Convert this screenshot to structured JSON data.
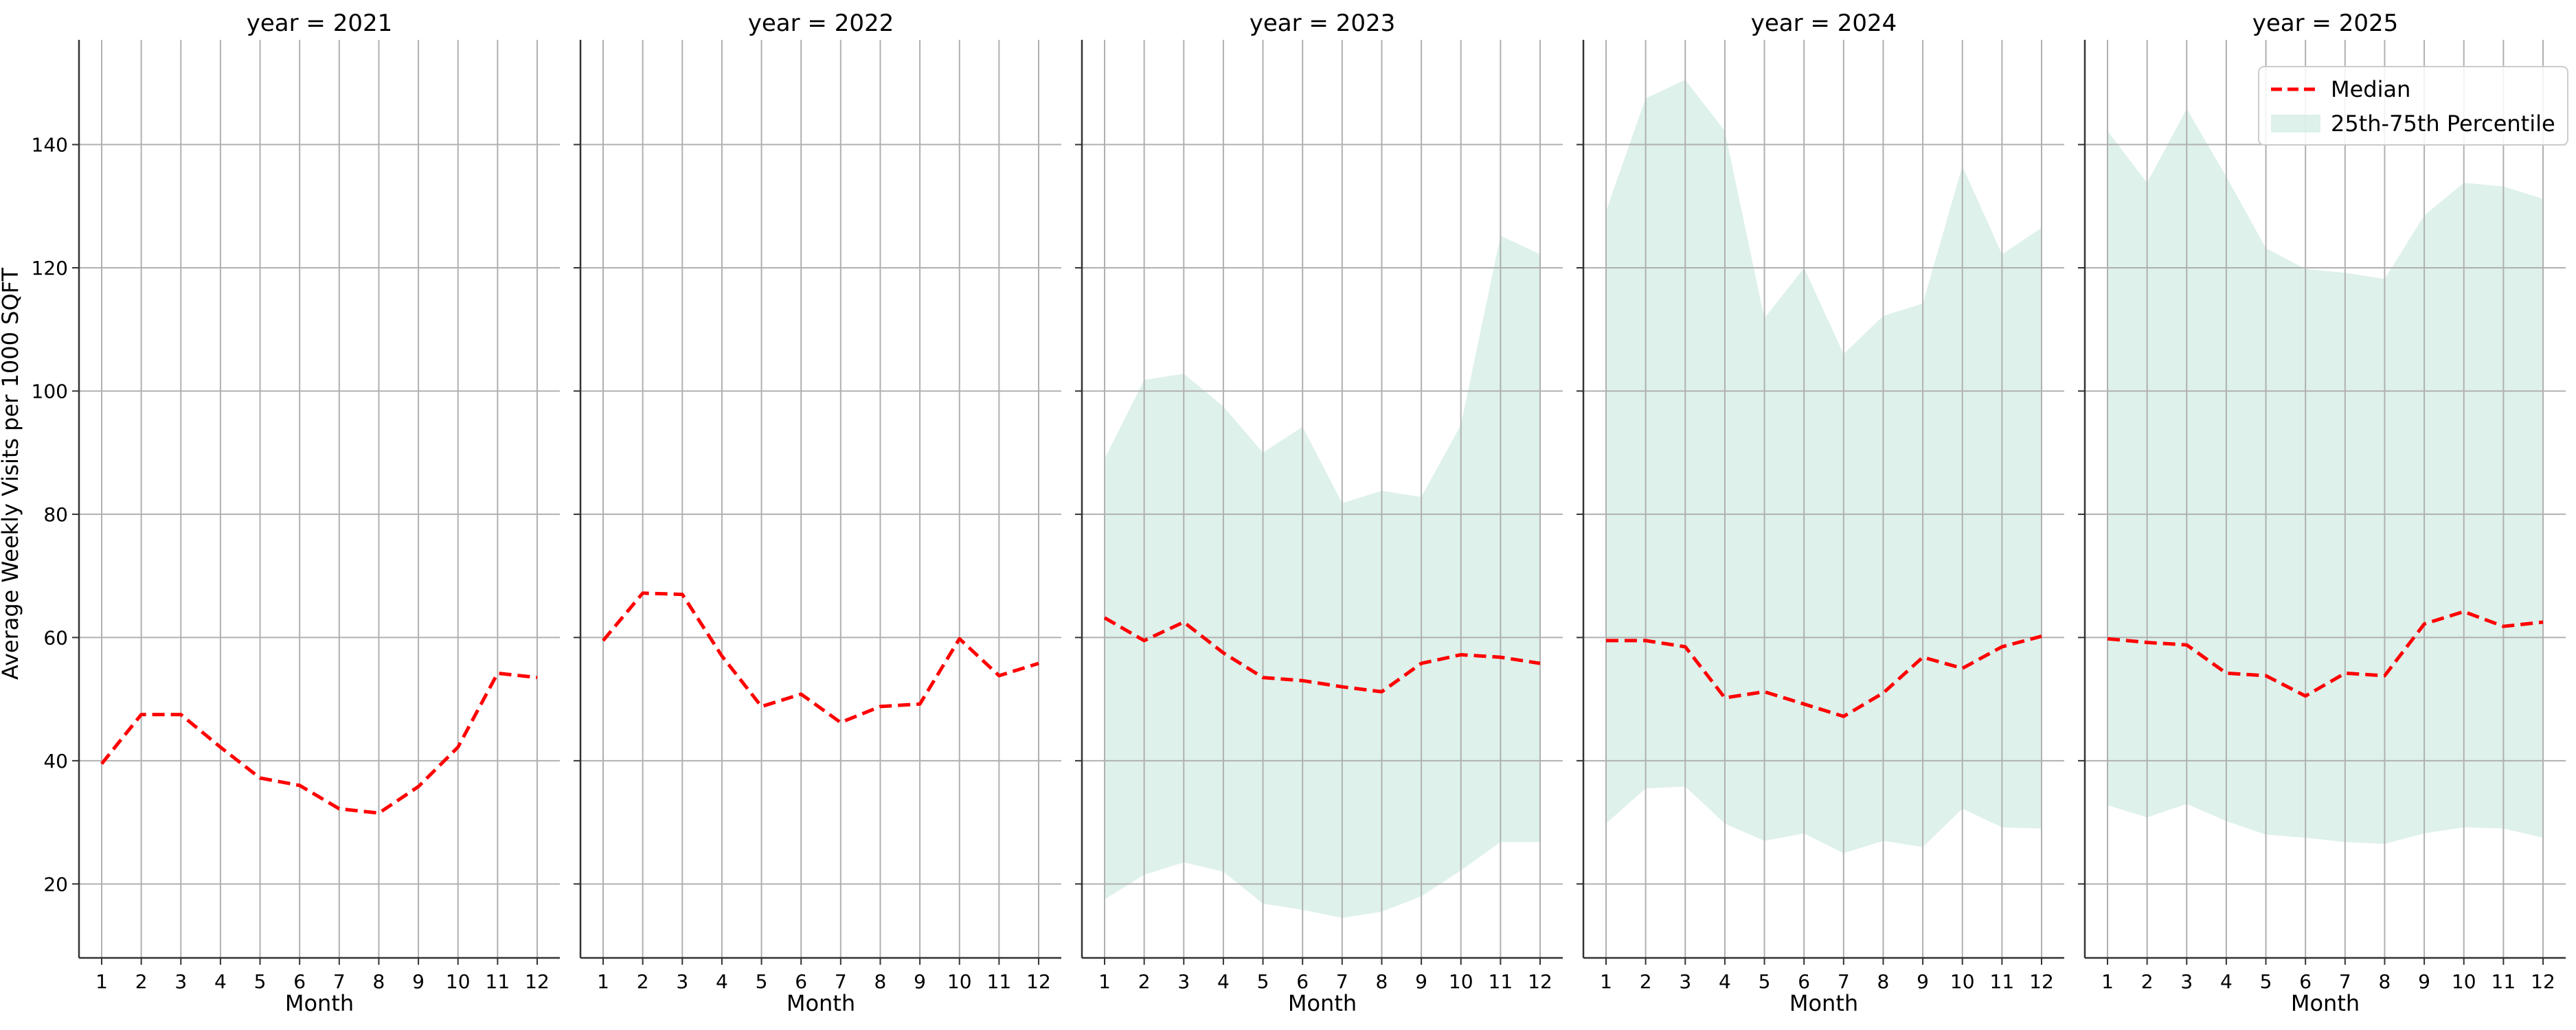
{
  "chart_data": {
    "type": "line",
    "layout": "facet-columns",
    "facet_label_prefix": "year = ",
    "ylabel": "Average Weekly Visits per 1000 SQFT",
    "xlabel": "Month",
    "ylim": [
      8,
      157
    ],
    "yticks": [
      20,
      40,
      60,
      80,
      100,
      120,
      140
    ],
    "x": [
      1,
      2,
      3,
      4,
      5,
      6,
      7,
      8,
      9,
      10,
      11,
      12
    ],
    "grid": true,
    "legend": {
      "placement": "top-right",
      "panel": "2025",
      "entries": [
        "Median",
        "25th-75th Percentile"
      ]
    },
    "colors": {
      "median": "#ff0000",
      "band": "#cdeae1"
    },
    "panels": [
      {
        "facet": "2021",
        "title": "year = 2021",
        "median": [
          39.5,
          47.5,
          47.5,
          42.2,
          37.2,
          36,
          32.2,
          31.5,
          35.8,
          42.2,
          54.2,
          53.5
        ],
        "p25": null,
        "p75": null
      },
      {
        "facet": "2022",
        "title": "year = 2022",
        "median": [
          59.5,
          67.2,
          67,
          57,
          48.8,
          50.8,
          46.2,
          48.8,
          49.2,
          59.8,
          53.8,
          55.8
        ],
        "p25": null,
        "p75": null
      },
      {
        "facet": "2023",
        "title": "year = 2023",
        "median": [
          63.2,
          59.5,
          62.5,
          57.5,
          53.5,
          53,
          52,
          51.2,
          55.8,
          57.2,
          56.8,
          55.8
        ],
        "p25": [
          17.5,
          21.5,
          23.5,
          22,
          16.8,
          15.8,
          14.5,
          15.5,
          18,
          22.2,
          26.8,
          26.8
        ],
        "p75": [
          89,
          101.8,
          102.8,
          97.5,
          90,
          94.2,
          81.8,
          83.8,
          82.8,
          94.5,
          125.2,
          122.2
        ]
      },
      {
        "facet": "2024",
        "title": "year = 2024",
        "median": [
          59.5,
          59.5,
          58.5,
          50.2,
          51.2,
          49.2,
          47.2,
          51,
          56.8,
          55,
          58.5,
          60.2
        ],
        "p25": [
          29.8,
          35.5,
          35.8,
          29.8,
          27,
          28.2,
          25,
          27,
          26,
          32.2,
          29.2,
          29
        ],
        "p75": [
          129.2,
          147.5,
          150.5,
          142.2,
          111.8,
          120,
          106,
          112.2,
          114.2,
          136.5,
          122.2,
          126.5
        ]
      },
      {
        "facet": "2025",
        "title": "year = 2025",
        "median": [
          59.8,
          59.2,
          58.8,
          54.2,
          53.8,
          50.5,
          54.2,
          53.8,
          62.2,
          64.2,
          61.8,
          62.5
        ],
        "p25": [
          32.8,
          30.8,
          33,
          30.2,
          28,
          27.5,
          26.8,
          26.5,
          28.2,
          29.2,
          29,
          27.5
        ],
        "p75": [
          142.2,
          133.8,
          145.8,
          134.8,
          123.2,
          119.8,
          119.2,
          118.2,
          128.5,
          133.8,
          133.2,
          131.2
        ]
      }
    ]
  }
}
